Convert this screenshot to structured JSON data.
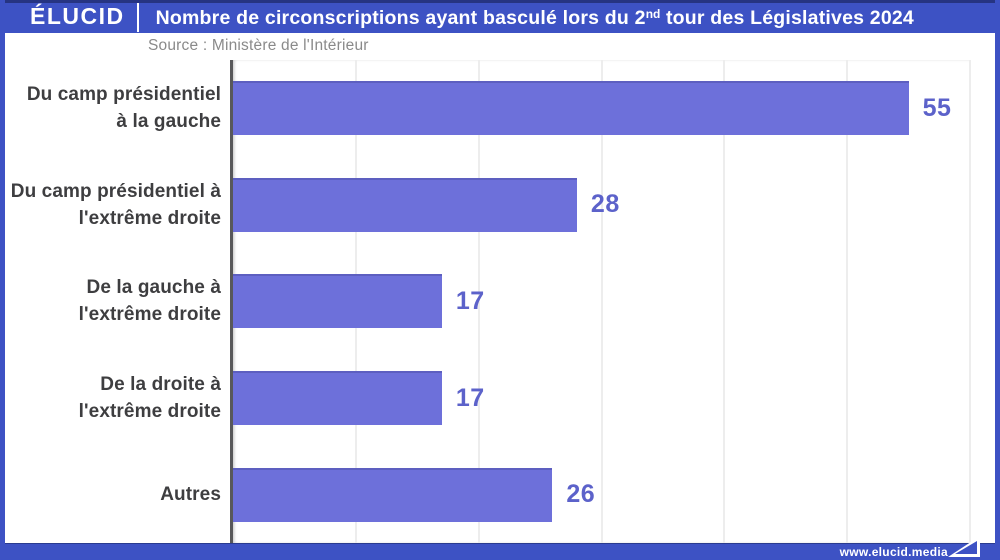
{
  "header": {
    "logo": "ÉLUCID",
    "title_pre": "Nombre de circonscriptions ayant basculé lors du 2",
    "title_sup": "nd",
    "title_post": " tour des Législatives 2024"
  },
  "source": "Source : Ministère de l'Intérieur",
  "chart_data": {
    "type": "bar",
    "orientation": "horizontal",
    "title": "Nombre de circonscriptions ayant basculé lors du 2nd tour des Législatives 2024",
    "source": "Source : Ministère de l'Intérieur",
    "categories": [
      "Du camp présidentiel\nà la gauche",
      "Du camp présidentiel à\nl'extrême droite",
      "De la gauche à\nl'extrême droite",
      "De la droite à\nl'extrême droite",
      "Autres"
    ],
    "values": [
      55,
      28,
      17,
      17,
      26
    ],
    "xlim": [
      0,
      60
    ],
    "gridline_step": 10,
    "grid": true,
    "legend": false,
    "xlabel": "",
    "ylabel": ""
  },
  "footer": {
    "url": "www.elucid.media"
  },
  "colors": {
    "frame_blue": "#3d52c4",
    "bar_purple": "#6d70da",
    "value_label": "#5c62ca",
    "axis_line": "#58585a",
    "gridline": "#ededed",
    "category_text": "#3e3e40",
    "source_text": "#8a8a8a"
  }
}
